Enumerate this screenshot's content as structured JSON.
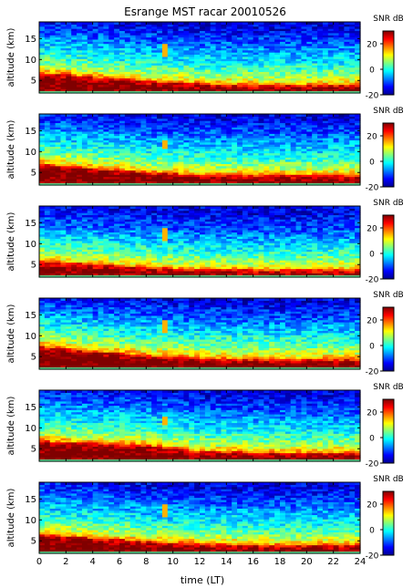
{
  "title": "Esrange MST racar 20010526",
  "colorbar_label": "SNR dB",
  "colorbar_ticks": [
    "20",
    "0",
    "-20"
  ],
  "xlabel": "time (LT)",
  "chart_data": {
    "type": "heatmap",
    "title": "Esrange MST racar 20010526",
    "xlabel": "time (LT)",
    "ylabel": "altitude (km)",
    "xlim": [
      0,
      24
    ],
    "ylim": [
      2,
      19
    ],
    "x_ticks": [
      "0",
      "2",
      "4",
      "6",
      "8",
      "10",
      "12",
      "14",
      "16",
      "18",
      "20",
      "22",
      "24"
    ],
    "x_tick_values": [
      0,
      2,
      4,
      6,
      8,
      10,
      12,
      14,
      16,
      18,
      20,
      22,
      24
    ],
    "y_ticks": [
      "5",
      "10",
      "15"
    ],
    "y_tick_values": [
      5,
      10,
      15
    ],
    "colorbar": {
      "label": "SNR dB",
      "range": [
        -20,
        30
      ],
      "ticks": [
        20,
        0,
        -20
      ],
      "colormap": "jet"
    },
    "panels": [
      {
        "name": "panel-1",
        "ylabel": "altitude (km)",
        "snr_profile": [
          {
            "altitude": 3,
            "snr": 27
          },
          {
            "altitude": 4,
            "snr": 22
          },
          {
            "altitude": 5,
            "snr": 14
          },
          {
            "altitude": 6,
            "snr": 8
          },
          {
            "altitude": 8,
            "snr": 2
          },
          {
            "altitude": 10,
            "snr": -2
          },
          {
            "altitude": 12,
            "snr": -5
          },
          {
            "altitude": 14,
            "snr": -9
          },
          {
            "altitude": 16,
            "snr": -12
          },
          {
            "altitude": 18,
            "snr": -15
          }
        ],
        "layer_top_km": [
          [
            0,
            7.0
          ],
          [
            4,
            6.0
          ],
          [
            8,
            5.0
          ],
          [
            12,
            4.3
          ],
          [
            18,
            4.0
          ],
          [
            24,
            4.2
          ]
        ],
        "feature": {
          "time": 9.5,
          "altitude_range": [
            11,
            14
          ],
          "snr": 15
        }
      },
      {
        "name": "panel-2",
        "ylabel": "altitude (km)",
        "snr_profile": [
          {
            "altitude": 3,
            "snr": 27
          },
          {
            "altitude": 4,
            "snr": 22
          },
          {
            "altitude": 5,
            "snr": 14
          },
          {
            "altitude": 6,
            "snr": 8
          },
          {
            "altitude": 8,
            "snr": 2
          },
          {
            "altitude": 10,
            "snr": -2
          },
          {
            "altitude": 12,
            "snr": -5
          },
          {
            "altitude": 14,
            "snr": -9
          },
          {
            "altitude": 16,
            "snr": -12
          },
          {
            "altitude": 18,
            "snr": -15
          }
        ],
        "layer_top_km": [
          [
            0,
            7.2
          ],
          [
            4,
            6.2
          ],
          [
            8,
            5.2
          ],
          [
            12,
            4.6
          ],
          [
            18,
            4.4
          ],
          [
            24,
            4.5
          ]
        ],
        "feature": {
          "time": 9.5,
          "altitude_range": [
            11,
            13
          ],
          "snr": 15
        }
      },
      {
        "name": "panel-3",
        "ylabel": "altitude (km)",
        "snr_profile": [
          {
            "altitude": 3,
            "snr": 26
          },
          {
            "altitude": 4,
            "snr": 21
          },
          {
            "altitude": 5,
            "snr": 13
          },
          {
            "altitude": 6,
            "snr": 8
          },
          {
            "altitude": 8,
            "snr": 2
          },
          {
            "altitude": 10,
            "snr": -2
          },
          {
            "altitude": 12,
            "snr": -6
          },
          {
            "altitude": 14,
            "snr": -10
          },
          {
            "altitude": 16,
            "snr": -12
          },
          {
            "altitude": 18,
            "snr": -15
          }
        ],
        "layer_top_km": [
          [
            0,
            6.0
          ],
          [
            4,
            5.2
          ],
          [
            8,
            4.6
          ],
          [
            12,
            4.0
          ],
          [
            18,
            3.8
          ],
          [
            24,
            4.0
          ]
        ],
        "feature": {
          "time": 9.5,
          "altitude_range": [
            11,
            14
          ],
          "snr": 15
        }
      },
      {
        "name": "panel-4",
        "ylabel": "altitude (km)",
        "snr_profile": [
          {
            "altitude": 3,
            "snr": 28
          },
          {
            "altitude": 4,
            "snr": 23
          },
          {
            "altitude": 5,
            "snr": 15
          },
          {
            "altitude": 6,
            "snr": 9
          },
          {
            "altitude": 8,
            "snr": 3
          },
          {
            "altitude": 10,
            "snr": -1
          },
          {
            "altitude": 12,
            "snr": -5
          },
          {
            "altitude": 14,
            "snr": -9
          },
          {
            "altitude": 16,
            "snr": -12
          },
          {
            "altitude": 18,
            "snr": -15
          }
        ],
        "layer_top_km": [
          [
            0,
            7.5
          ],
          [
            4,
            6.3
          ],
          [
            8,
            5.4
          ],
          [
            12,
            4.7
          ],
          [
            18,
            4.3
          ],
          [
            24,
            4.4
          ]
        ],
        "feature": {
          "time": 9.5,
          "altitude_range": [
            11,
            14
          ],
          "snr": 15
        }
      },
      {
        "name": "panel-5",
        "ylabel": "altitude (km)",
        "snr_profile": [
          {
            "altitude": 3,
            "snr": 27
          },
          {
            "altitude": 4,
            "snr": 22
          },
          {
            "altitude": 5,
            "snr": 14
          },
          {
            "altitude": 6,
            "snr": 8
          },
          {
            "altitude": 8,
            "snr": 2
          },
          {
            "altitude": 10,
            "snr": -2
          },
          {
            "altitude": 12,
            "snr": -5
          },
          {
            "altitude": 14,
            "snr": -9
          },
          {
            "altitude": 16,
            "snr": -12
          },
          {
            "altitude": 18,
            "snr": -15
          }
        ],
        "layer_top_km": [
          [
            0,
            7.0
          ],
          [
            4,
            6.5
          ],
          [
            8,
            6.0
          ],
          [
            12,
            4.5
          ],
          [
            18,
            4.2
          ],
          [
            24,
            4.3
          ]
        ],
        "feature": {
          "time": 9.5,
          "altitude_range": [
            11,
            13
          ],
          "snr": 15
        }
      },
      {
        "name": "panel-6",
        "ylabel": "altitude (km)",
        "snr_profile": [
          {
            "altitude": 3,
            "snr": 27
          },
          {
            "altitude": 4,
            "snr": 22
          },
          {
            "altitude": 5,
            "snr": 14
          },
          {
            "altitude": 6,
            "snr": 8
          },
          {
            "altitude": 8,
            "snr": 2
          },
          {
            "altitude": 10,
            "snr": -2
          },
          {
            "altitude": 12,
            "snr": -5
          },
          {
            "altitude": 14,
            "snr": -9
          },
          {
            "altitude": 16,
            "snr": -12
          },
          {
            "altitude": 18,
            "snr": -15
          }
        ],
        "layer_top_km": [
          [
            0,
            6.8
          ],
          [
            4,
            5.8
          ],
          [
            8,
            5.0
          ],
          [
            12,
            4.4
          ],
          [
            18,
            4.1
          ],
          [
            24,
            4.2
          ]
        ],
        "feature": {
          "time": 9.5,
          "altitude_range": [
            11,
            14
          ],
          "snr": 15
        }
      }
    ]
  }
}
